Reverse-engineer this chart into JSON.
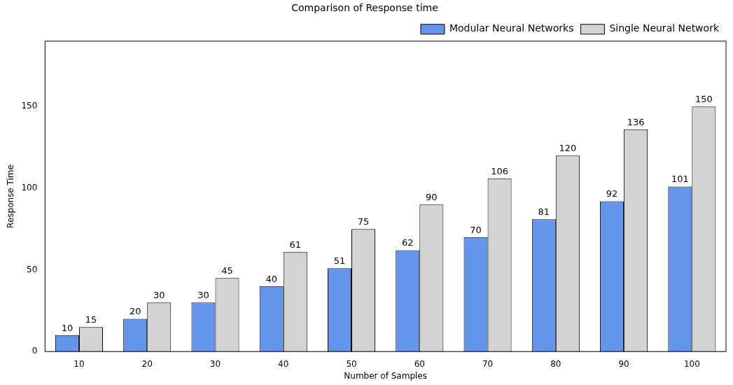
{
  "chart_data": {
    "type": "bar",
    "title": "Comparison of Response time",
    "xlabel": "Number of Samples",
    "ylabel": "Response Time",
    "categories": [
      "10",
      "20",
      "30",
      "40",
      "50",
      "60",
      "70",
      "80",
      "90",
      "100"
    ],
    "series": [
      {
        "name": "Modular Neural Networks",
        "color": "#6495ed",
        "values": [
          10,
          20,
          30,
          40,
          51,
          62,
          70,
          81,
          92,
          101
        ]
      },
      {
        "name": "Single Neural Network",
        "color": "#d3d3d3",
        "values": [
          15,
          30,
          45,
          61,
          75,
          90,
          106,
          120,
          136,
          150
        ]
      }
    ],
    "ylim": [
      0,
      190
    ],
    "yticks": [
      0,
      50,
      100,
      150
    ],
    "data_labels": true,
    "legend": "top right",
    "grid": false
  }
}
